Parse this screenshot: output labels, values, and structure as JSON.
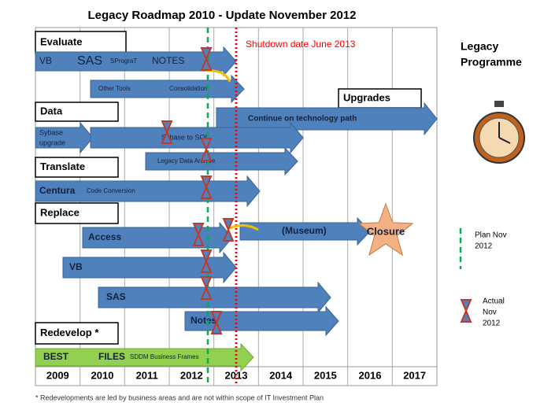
{
  "title": "Legacy Roadmap  2010  - Update November 2012",
  "years": [
    "2009",
    "2010",
    "2011",
    "2012",
    "2013",
    "2014",
    "2015",
    "2016",
    "2017"
  ],
  "sections": {
    "evaluate": "Evaluate",
    "data": "Data",
    "translate": "Translate",
    "replace": "Replace",
    "redevelop": "Redevelop *",
    "upgrades": "Upgrades"
  },
  "arrows": [
    {
      "labels": [
        "VB",
        "SAS",
        "SProgrаT",
        "NOTES"
      ]
    },
    {
      "labels": [
        "Other Tools",
        "Consolidation"
      ]
    },
    {
      "labels": [
        "Continue on technology path"
      ]
    },
    {
      "labels": [
        "Sybase",
        "upgrade"
      ]
    },
    {
      "labels": [
        "Sybase to SQL"
      ]
    },
    {
      "labels": [
        "Legacy Data Archive"
      ]
    },
    {
      "labels": [
        "Centura",
        "Code Conversion"
      ]
    },
    {
      "labels": [
        "(Museum)"
      ]
    },
    {
      "labels": [
        "Access"
      ]
    },
    {
      "labels": [
        "VB"
      ]
    },
    {
      "labels": [
        "SAS"
      ]
    },
    {
      "labels": [
        "Notes"
      ]
    },
    {
      "labels": [
        "BEST",
        "FILES",
        "SDDM Business Frames"
      ]
    }
  ],
  "closure": "Closure",
  "shutdown": "Shutdown date June 2013",
  "side_title": [
    "Legacy",
    "Programme"
  ],
  "legend": {
    "plan": [
      "Plan Nov",
      "2012"
    ],
    "actual": [
      "Actual",
      "Nov",
      "2012"
    ]
  },
  "footnote": "*  Redevelopments are led by business areas and are not within scope of IT Investment Plan"
}
